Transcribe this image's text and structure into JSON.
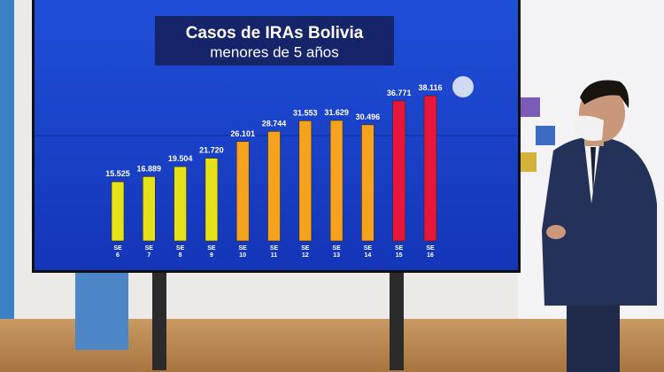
{
  "chart_data": {
    "type": "bar",
    "title": "Casos de IRAs Bolivia",
    "subtitle": "menores de 5 años",
    "categories": [
      "SE 6",
      "SE 7",
      "SE 8",
      "SE 9",
      "SE 10",
      "SE 11",
      "SE 12",
      "SE 13",
      "SE 14",
      "SE 15",
      "SE 16"
    ],
    "values": [
      15525,
      16889,
      19504,
      21720,
      26101,
      28744,
      31553,
      31629,
      30496,
      36771,
      38116
    ],
    "value_labels": [
      "15.525",
      "16.889",
      "19.504",
      "21.720",
      "26.101",
      "28.744",
      "31.553",
      "31.629",
      "30.496",
      "36.771",
      "38.116"
    ],
    "colors": [
      "#e6e21a",
      "#e6e21a",
      "#e6e21a",
      "#e6e21a",
      "#f5a21e",
      "#f5a21e",
      "#f5a21e",
      "#f5a21e",
      "#f5a21e",
      "#e8163a",
      "#e8163a"
    ],
    "ylim": [
      0,
      40000
    ]
  }
}
